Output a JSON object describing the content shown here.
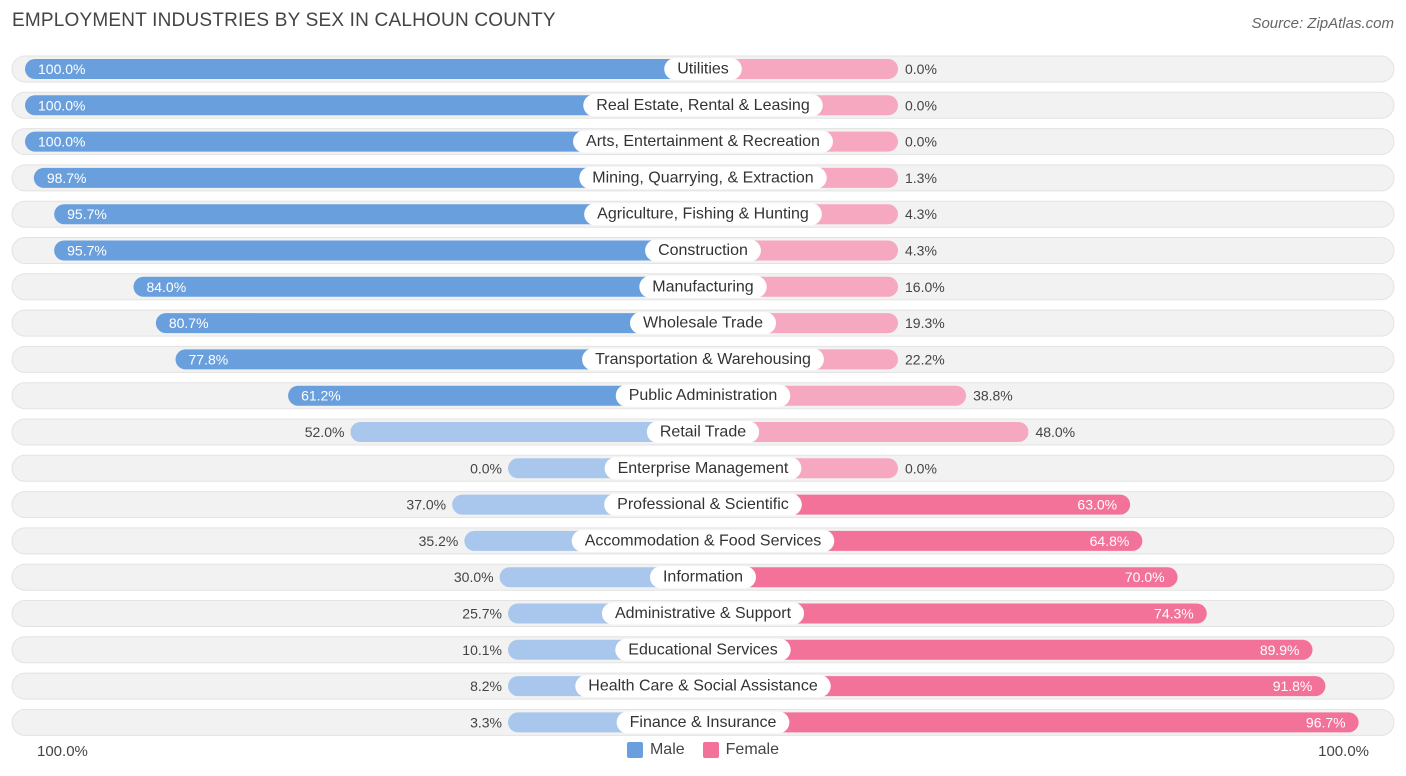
{
  "header": {
    "title": "EMPLOYMENT INDUSTRIES BY SEX IN CALHOUN COUNTY",
    "source": "Source: ZipAtlas.com"
  },
  "axis": {
    "left_label": "100.0%",
    "right_label": "100.0%"
  },
  "legend": {
    "male_label": "Male",
    "female_label": "Female"
  },
  "colors": {
    "male": "#6a9fdd",
    "male_light": "#a9c7ec",
    "female": "#f2729a",
    "female_light": "#f6a8c0",
    "row_bg": "#f2f2f2"
  },
  "chart_data": {
    "type": "bar",
    "title": "EMPLOYMENT INDUSTRIES BY SEX IN CALHOUN COUNTY",
    "orientation": "horizontal-diverging",
    "xlim": [
      -100,
      100
    ],
    "series": [
      {
        "name": "Male",
        "values": [
          100.0,
          100.0,
          100.0,
          98.7,
          95.7,
          95.7,
          84.0,
          80.7,
          77.8,
          61.2,
          52.0,
          0.0,
          37.0,
          35.2,
          30.0,
          25.7,
          10.1,
          8.2,
          3.3
        ],
        "labels": [
          "100.0%",
          "100.0%",
          "100.0%",
          "98.7%",
          "95.7%",
          "95.7%",
          "84.0%",
          "80.7%",
          "77.8%",
          "61.2%",
          "52.0%",
          "0.0%",
          "37.0%",
          "35.2%",
          "30.0%",
          "25.7%",
          "10.1%",
          "8.2%",
          "3.3%"
        ]
      },
      {
        "name": "Female",
        "values": [
          0.0,
          0.0,
          0.0,
          1.3,
          4.3,
          4.3,
          16.0,
          19.3,
          22.2,
          38.8,
          48.0,
          0.0,
          63.0,
          64.8,
          70.0,
          74.3,
          89.9,
          91.8,
          96.7
        ],
        "labels": [
          "0.0%",
          "0.0%",
          "0.0%",
          "1.3%",
          "4.3%",
          "4.3%",
          "16.0%",
          "19.3%",
          "22.2%",
          "38.8%",
          "48.0%",
          "0.0%",
          "63.0%",
          "64.8%",
          "70.0%",
          "74.3%",
          "89.9%",
          "91.8%",
          "96.7%"
        ]
      }
    ],
    "categories": [
      "Utilities",
      "Real Estate, Rental & Leasing",
      "Arts, Entertainment & Recreation",
      "Mining, Quarrying, & Extraction",
      "Agriculture, Fishing & Hunting",
      "Construction",
      "Manufacturing",
      "Wholesale Trade",
      "Transportation & Warehousing",
      "Public Administration",
      "Retail Trade",
      "Enterprise Management",
      "Professional & Scientific",
      "Accommodation & Food Services",
      "Information",
      "Administrative & Support",
      "Educational Services",
      "Health Care & Social Assistance",
      "Finance & Insurance"
    ]
  }
}
